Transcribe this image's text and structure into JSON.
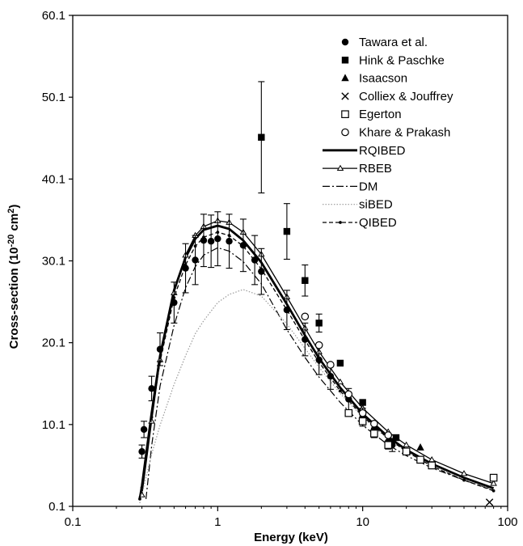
{
  "chart_data": {
    "type": "scatter",
    "xscale": "log",
    "xlim": [
      0.1,
      100
    ],
    "ylim": [
      0.1,
      60.1
    ],
    "xticks": [
      "0.1",
      "1",
      "10",
      "100"
    ],
    "yticks": [
      "0.1",
      "10.1",
      "20.1",
      "30.1",
      "40.1",
      "50.1",
      "60.1"
    ],
    "xlabel": "Energy  (keV)",
    "ylabel_main": "Cross-section (10",
    "ylabel_sup1": "-20",
    "ylabel_mid": " cm",
    "ylabel_sup2": "2",
    "ylabel_end": ")",
    "grid": false,
    "legend_position": "top-right",
    "series": [
      {
        "name": "Tawara et al.",
        "kind": "points",
        "marker": "filled-circle",
        "points": [
          {
            "x": 0.3,
            "y": 6.8,
            "err": 0.8
          },
          {
            "x": 0.31,
            "y": 9.5,
            "err": 1.0
          },
          {
            "x": 0.35,
            "y": 14.5,
            "err": 1.5
          },
          {
            "x": 0.4,
            "y": 19.3,
            "err": 2.0
          },
          {
            "x": 0.5,
            "y": 25.0,
            "err": 2.5
          },
          {
            "x": 0.6,
            "y": 29.2,
            "err": 3.0
          },
          {
            "x": 0.7,
            "y": 30.2,
            "err": 3.0
          },
          {
            "x": 0.8,
            "y": 32.6,
            "err": 3.2
          },
          {
            "x": 0.9,
            "y": 32.5,
            "err": 3.2
          },
          {
            "x": 1.0,
            "y": 32.8,
            "err": 3.3
          },
          {
            "x": 1.2,
            "y": 32.5,
            "err": 3.3
          },
          {
            "x": 1.5,
            "y": 32.0,
            "err": 3.2
          },
          {
            "x": 1.8,
            "y": 30.2,
            "err": 3.0
          },
          {
            "x": 2.0,
            "y": 28.8,
            "err": 2.8
          },
          {
            "x": 3.0,
            "y": 24.1,
            "err": 2.4
          },
          {
            "x": 4.0,
            "y": 20.5,
            "err": 2.0
          },
          {
            "x": 5.0,
            "y": 18.0,
            "err": 1.8
          },
          {
            "x": 6.0,
            "y": 16.0,
            "err": 1.6
          },
          {
            "x": 8.0,
            "y": 13.2,
            "err": 1.3
          },
          {
            "x": 10.0,
            "y": 11.0,
            "err": 1.1
          },
          {
            "x": 12.0,
            "y": 9.5,
            "err": 1.0
          },
          {
            "x": 15.0,
            "y": 8.0,
            "err": 0.9
          },
          {
            "x": 16.0,
            "y": 7.6,
            "err": 0.8
          }
        ]
      },
      {
        "name": "Hink & Paschke",
        "kind": "points",
        "marker": "filled-square",
        "points": [
          {
            "x": 2.0,
            "y": 45.2,
            "err": 6.8
          },
          {
            "x": 3.0,
            "y": 33.7,
            "err": 3.4
          },
          {
            "x": 4.0,
            "y": 27.7,
            "err": 1.9
          },
          {
            "x": 5.0,
            "y": 22.5,
            "err": 1.1
          },
          {
            "x": 7.0,
            "y": 17.6,
            "err": 0
          },
          {
            "x": 10.0,
            "y": 12.8,
            "err": 0
          },
          {
            "x": 17.0,
            "y": 8.5,
            "err": 0
          }
        ]
      },
      {
        "name": "Isaacson",
        "kind": "points",
        "marker": "filled-triangle",
        "points": [
          {
            "x": 25.0,
            "y": 7.3,
            "err": 0
          }
        ]
      },
      {
        "name": "Colliex & Jouffrey",
        "kind": "points",
        "marker": "cross",
        "points": [
          {
            "x": 75.0,
            "y": 0.6,
            "err": 0
          }
        ]
      },
      {
        "name": "Egerton",
        "kind": "points",
        "marker": "open-square",
        "points": [
          {
            "x": 8.0,
            "y": 11.5,
            "err": 0
          },
          {
            "x": 10.0,
            "y": 10.5,
            "err": 0
          },
          {
            "x": 12.0,
            "y": 9.0,
            "err": 0
          },
          {
            "x": 15.0,
            "y": 7.6,
            "err": 0
          },
          {
            "x": 20.0,
            "y": 6.8,
            "err": 0
          },
          {
            "x": 25.0,
            "y": 5.8,
            "err": 0
          },
          {
            "x": 30.0,
            "y": 5.1,
            "err": 0
          },
          {
            "x": 80.0,
            "y": 3.6,
            "err": 0
          }
        ]
      },
      {
        "name": "Khare & Prakash",
        "kind": "points",
        "marker": "open-circle",
        "points": [
          {
            "x": 4.0,
            "y": 23.3,
            "err": 0
          },
          {
            "x": 5.0,
            "y": 19.8,
            "err": 0
          },
          {
            "x": 6.0,
            "y": 17.4,
            "err": 0
          },
          {
            "x": 8.0,
            "y": 13.8,
            "err": 0
          },
          {
            "x": 10.0,
            "y": 11.5,
            "err": 0
          },
          {
            "x": 12.0,
            "y": 10.2,
            "err": 0
          },
          {
            "x": 15.0,
            "y": 8.8,
            "err": 0
          }
        ]
      },
      {
        "name": "RQIBED",
        "kind": "line",
        "style": "solid-thick",
        "color": "#000000",
        "points": [
          {
            "x": 0.29,
            "y": 1.0
          },
          {
            "x": 0.3,
            "y": 2.6
          },
          {
            "x": 0.35,
            "y": 11.5
          },
          {
            "x": 0.4,
            "y": 18.5
          },
          {
            "x": 0.5,
            "y": 26.5
          },
          {
            "x": 0.6,
            "y": 30.5
          },
          {
            "x": 0.7,
            "y": 32.8
          },
          {
            "x": 0.8,
            "y": 33.9
          },
          {
            "x": 1.0,
            "y": 34.4
          },
          {
            "x": 1.2,
            "y": 34.0
          },
          {
            "x": 1.5,
            "y": 32.6
          },
          {
            "x": 2.0,
            "y": 29.9
          },
          {
            "x": 3.0,
            "y": 24.8
          },
          {
            "x": 4.0,
            "y": 21.0
          },
          {
            "x": 5.0,
            "y": 18.2
          },
          {
            "x": 7.0,
            "y": 14.6
          },
          {
            "x": 10.0,
            "y": 11.4
          },
          {
            "x": 15.0,
            "y": 8.6
          },
          {
            "x": 20.0,
            "y": 7.0
          },
          {
            "x": 30.0,
            "y": 5.3
          },
          {
            "x": 50.0,
            "y": 3.6
          },
          {
            "x": 80.0,
            "y": 2.3
          }
        ]
      },
      {
        "name": "RBEB",
        "kind": "line",
        "style": "solid-triangles",
        "color": "#000000",
        "points": [
          {
            "x": 0.3,
            "y": 1.5
          },
          {
            "x": 0.35,
            "y": 10.5
          },
          {
            "x": 0.4,
            "y": 18.0
          },
          {
            "x": 0.5,
            "y": 26.2
          },
          {
            "x": 0.6,
            "y": 30.8
          },
          {
            "x": 0.7,
            "y": 33.2
          },
          {
            "x": 0.8,
            "y": 34.3
          },
          {
            "x": 1.0,
            "y": 35.0
          },
          {
            "x": 1.2,
            "y": 34.8
          },
          {
            "x": 1.5,
            "y": 33.6
          },
          {
            "x": 2.0,
            "y": 30.9
          },
          {
            "x": 3.0,
            "y": 25.7
          },
          {
            "x": 4.0,
            "y": 21.9
          },
          {
            "x": 5.0,
            "y": 19.0
          },
          {
            "x": 7.0,
            "y": 15.3
          },
          {
            "x": 10.0,
            "y": 12.1
          },
          {
            "x": 15.0,
            "y": 9.2
          },
          {
            "x": 20.0,
            "y": 7.6
          },
          {
            "x": 30.0,
            "y": 5.8
          },
          {
            "x": 50.0,
            "y": 4.1
          },
          {
            "x": 80.0,
            "y": 2.9
          }
        ]
      },
      {
        "name": "DM",
        "kind": "line",
        "style": "dash-dot",
        "color": "#000000",
        "points": [
          {
            "x": 0.32,
            "y": 1.0
          },
          {
            "x": 0.35,
            "y": 7.5
          },
          {
            "x": 0.4,
            "y": 14.8
          },
          {
            "x": 0.5,
            "y": 22.2
          },
          {
            "x": 0.6,
            "y": 26.8
          },
          {
            "x": 0.7,
            "y": 29.4
          },
          {
            "x": 0.8,
            "y": 30.8
          },
          {
            "x": 1.0,
            "y": 31.7
          },
          {
            "x": 1.2,
            "y": 31.3
          },
          {
            "x": 1.5,
            "y": 30.0
          },
          {
            "x": 2.0,
            "y": 27.3
          },
          {
            "x": 3.0,
            "y": 21.7
          },
          {
            "x": 4.0,
            "y": 18.3
          },
          {
            "x": 5.0,
            "y": 15.9
          },
          {
            "x": 7.0,
            "y": 12.8
          },
          {
            "x": 10.0,
            "y": 10.0
          },
          {
            "x": 15.0,
            "y": 7.6
          },
          {
            "x": 20.0,
            "y": 6.3
          },
          {
            "x": 30.0,
            "y": 4.8
          },
          {
            "x": 50.0,
            "y": 3.3
          },
          {
            "x": 80.0,
            "y": 2.1
          }
        ]
      },
      {
        "name": "siBED",
        "kind": "line",
        "style": "dotted-gray",
        "color": "#9a9a9a",
        "points": [
          {
            "x": 0.29,
            "y": 0.5
          },
          {
            "x": 0.35,
            "y": 6.5
          },
          {
            "x": 0.4,
            "y": 10.0
          },
          {
            "x": 0.5,
            "y": 15.0
          },
          {
            "x": 0.6,
            "y": 18.5
          },
          {
            "x": 0.7,
            "y": 21.2
          },
          {
            "x": 0.8,
            "y": 22.8
          },
          {
            "x": 1.0,
            "y": 25.0
          },
          {
            "x": 1.2,
            "y": 26.0
          },
          {
            "x": 1.5,
            "y": 26.6
          },
          {
            "x": 2.0,
            "y": 25.8
          },
          {
            "x": 3.0,
            "y": 22.4
          },
          {
            "x": 4.0,
            "y": 19.4
          },
          {
            "x": 5.0,
            "y": 17.1
          },
          {
            "x": 7.0,
            "y": 13.9
          },
          {
            "x": 10.0,
            "y": 11.0
          },
          {
            "x": 15.0,
            "y": 8.3
          },
          {
            "x": 20.0,
            "y": 6.8
          },
          {
            "x": 30.0,
            "y": 5.1
          },
          {
            "x": 50.0,
            "y": 3.4
          },
          {
            "x": 80.0,
            "y": 2.1
          }
        ]
      },
      {
        "name": "QIBED",
        "kind": "line",
        "style": "dashed-dots",
        "color": "#000000",
        "points": [
          {
            "x": 0.29,
            "y": 1.0
          },
          {
            "x": 0.3,
            "y": 2.4
          },
          {
            "x": 0.35,
            "y": 11.0
          },
          {
            "x": 0.4,
            "y": 17.8
          },
          {
            "x": 0.5,
            "y": 25.6
          },
          {
            "x": 0.6,
            "y": 29.6
          },
          {
            "x": 0.7,
            "y": 31.9
          },
          {
            "x": 0.8,
            "y": 33.0
          },
          {
            "x": 1.0,
            "y": 33.6
          },
          {
            "x": 1.2,
            "y": 33.2
          },
          {
            "x": 1.5,
            "y": 31.9
          },
          {
            "x": 2.0,
            "y": 29.1
          },
          {
            "x": 3.0,
            "y": 24.1
          },
          {
            "x": 4.0,
            "y": 20.4
          },
          {
            "x": 5.0,
            "y": 17.7
          },
          {
            "x": 7.0,
            "y": 14.2
          },
          {
            "x": 10.0,
            "y": 11.1
          },
          {
            "x": 15.0,
            "y": 8.4
          },
          {
            "x": 20.0,
            "y": 6.8
          },
          {
            "x": 30.0,
            "y": 5.0
          },
          {
            "x": 50.0,
            "y": 3.3
          },
          {
            "x": 80.0,
            "y": 2.0
          }
        ]
      }
    ]
  }
}
